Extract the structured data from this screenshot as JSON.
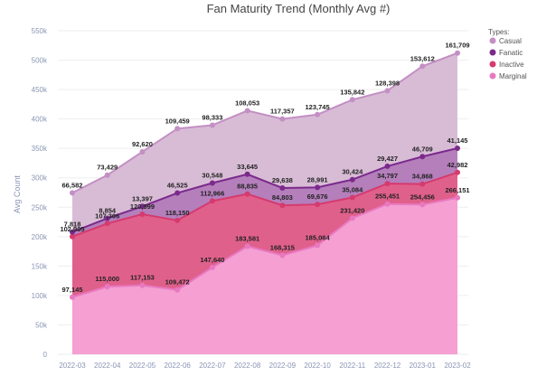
{
  "chart_data": {
    "type": "area",
    "stacked": true,
    "title": "Fan Maturity Trend (Monthly Avg #)",
    "ylabel": "Avg Count",
    "xlabel": "",
    "ylim": [
      0,
      550000
    ],
    "yticks": [
      0,
      50000,
      100000,
      150000,
      200000,
      250000,
      300000,
      350000,
      400000,
      450000,
      500000,
      550000
    ],
    "ytick_labels": [
      "0",
      "50k",
      "100k",
      "150k",
      "200k",
      "250k",
      "300k",
      "350k",
      "400k",
      "450k",
      "500k",
      "550k"
    ],
    "grid": true,
    "legend_title": "Types:",
    "legend_position": "top-right",
    "categories": [
      "2022-03",
      "2022-04",
      "2022-05",
      "2022-06",
      "2022-07",
      "2022-08",
      "2022-09",
      "2022-10",
      "2022-11",
      "2022-12",
      "2023-01",
      "2023-02"
    ],
    "series": [
      {
        "name": "Marginal",
        "color": "#f59fd3",
        "line_color": "#e879c0",
        "values": [
          97145,
          115000,
          117153,
          109472,
          147640,
          183581,
          168315,
          185064,
          231420,
          255451,
          254456,
          266151
        ],
        "labels": [
          "97,145",
          "115,000",
          "117,153",
          "109,472",
          "147,640",
          "183,581",
          "168,315",
          "185,064",
          "231,420",
          "255,451",
          "254,456",
          "266,151"
        ]
      },
      {
        "name": "Inactive",
        "color": "#e0608c",
        "line_color": "#d63a6e",
        "values": [
          102905,
          107306,
          120999,
          118150,
          112966,
          88835,
          84803,
          69676,
          35084,
          34797,
          34868,
          42982
        ],
        "labels": [
          "102,905",
          "107,306",
          "120,999",
          "118,150",
          "112,966",
          "88,835",
          "84,803",
          "69,676",
          "35,084",
          "34,797",
          "34,868",
          "42,982"
        ]
      },
      {
        "name": "Fanatic",
        "color": "#b47fbb",
        "line_color": "#7b2a8c",
        "values": [
          7818,
          8854,
          13397,
          46525,
          30548,
          33645,
          29638,
          28991,
          30424,
          29427,
          46709,
          41145
        ],
        "labels": [
          "7,818",
          "8,854",
          "13,397",
          "46,525",
          "30,548",
          "33,645",
          "29,638",
          "28,991",
          "30,424",
          "29,427",
          "46,709",
          "41,145"
        ]
      },
      {
        "name": "Casual",
        "color": "#d8bcd6",
        "line_color": "#c38fc4",
        "values": [
          66582,
          73429,
          92620,
          109459,
          98333,
          108053,
          117357,
          123745,
          135842,
          128398,
          153612,
          161709
        ],
        "labels": [
          "66,582",
          "73,429",
          "92,620",
          "109,459",
          "98,333",
          "108,053",
          "117,357",
          "123,745",
          "135,842",
          "128,398",
          "153,612",
          "161,709"
        ]
      }
    ],
    "legend_order": [
      "Casual",
      "Fanatic",
      "Inactive",
      "Marginal"
    ]
  }
}
